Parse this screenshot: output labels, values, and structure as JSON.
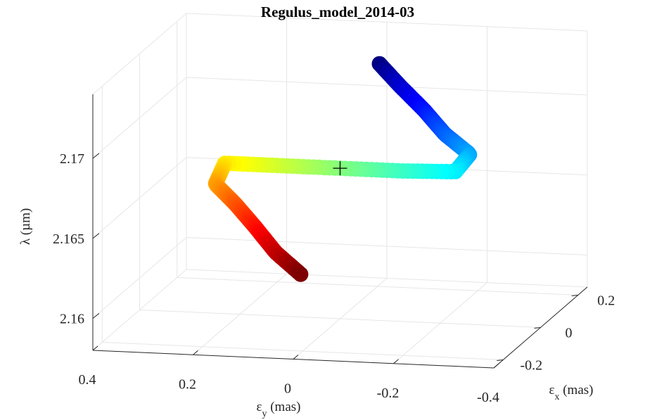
{
  "chart_data": {
    "type": "scatter",
    "projection": "3d",
    "title": "Regulus_model_2014-03",
    "xlabel": "ε_y (mas)",
    "ylabel": "ε_x (mas)",
    "zlabel": "λ (µm)",
    "xlim": [
      0.4,
      -0.4
    ],
    "ylim": [
      -0.25,
      0.25
    ],
    "zlim": [
      2.158,
      2.174
    ],
    "x_ticks": [
      "0.4",
      "0.2",
      "0",
      "-0.2",
      "-0.4"
    ],
    "y_ticks": [
      "-0.2",
      "0",
      "0.2"
    ],
    "z_ticks": [
      "2.16",
      "2.165",
      "2.17"
    ],
    "grid": true,
    "colormap": "jet",
    "colormap_colors": [
      "#00007f",
      "#0000ff",
      "#007fff",
      "#00ffff",
      "#7fff7f",
      "#ffff00",
      "#ff7f00",
      "#ff0000",
      "#7f0000"
    ],
    "marker_center": {
      "x": 0,
      "y": 0,
      "z": 2.1674
    },
    "series": [
      {
        "points": [
          {
            "x": -0.06,
            "y": 0.05,
            "z": 2.1735
          },
          {
            "x": -0.1,
            "y": 0.05,
            "z": 2.1722
          },
          {
            "x": -0.15,
            "y": 0.05,
            "z": 2.1707
          },
          {
            "x": -0.19,
            "y": 0.05,
            "z": 2.1693
          },
          {
            "x": -0.24,
            "y": 0.05,
            "z": 2.1681
          },
          {
            "x": -0.23,
            "y": 0.0,
            "z": 2.1675
          },
          {
            "x": -0.12,
            "y": 0.0,
            "z": 2.1674
          },
          {
            "x": 0.0,
            "y": 0.0,
            "z": 2.1674
          },
          {
            "x": 0.12,
            "y": 0.0,
            "z": 2.1674
          },
          {
            "x": 0.23,
            "y": 0.0,
            "z": 2.1674
          },
          {
            "x": 0.23,
            "y": -0.05,
            "z": 2.1666
          },
          {
            "x": 0.19,
            "y": -0.05,
            "z": 2.1654
          },
          {
            "x": 0.15,
            "y": -0.05,
            "z": 2.164
          },
          {
            "x": 0.11,
            "y": -0.05,
            "z": 2.1625
          },
          {
            "x": 0.06,
            "y": -0.05,
            "z": 2.1612
          }
        ]
      }
    ]
  }
}
